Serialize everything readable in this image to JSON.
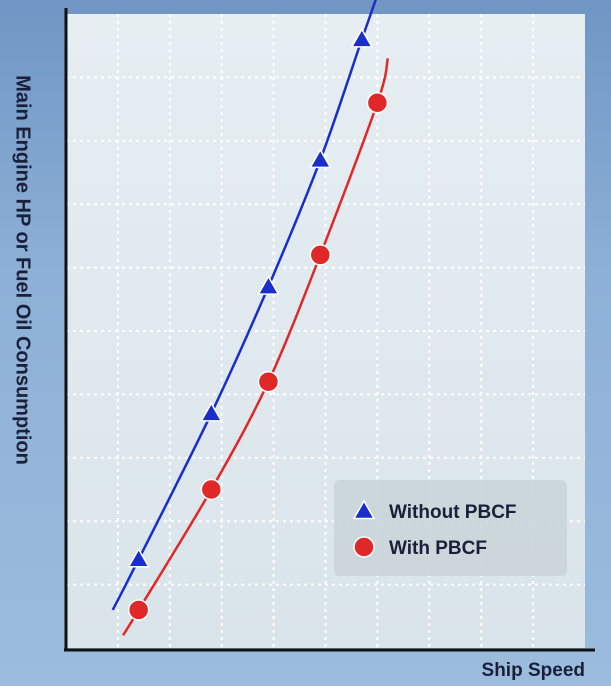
{
  "chart_data": {
    "type": "line",
    "title": "",
    "xlabel": "Ship Speed",
    "ylabel": "Main Engine HP or Fuel Oil Consumption",
    "grid": true,
    "legend": "bottom-right",
    "xlim": [
      0,
      10
    ],
    "ylim": [
      0,
      10
    ],
    "series": [
      {
        "name": "Without PBCF",
        "marker": "triangle",
        "color": "#1a2ecc",
        "x": [
          1.4,
          2.8,
          3.9,
          4.9,
          5.7
        ],
        "y": [
          1.4,
          3.7,
          5.7,
          7.7,
          9.6
        ],
        "curve_x": [
          0.9,
          1.4,
          2.8,
          3.9,
          4.9,
          5.7,
          6.0
        ],
        "curve_y": [
          0.6,
          1.4,
          3.7,
          5.7,
          7.7,
          9.6,
          10.3
        ]
      },
      {
        "name": "With PBCF",
        "marker": "circle",
        "color": "#e02828",
        "x": [
          1.4,
          2.8,
          3.9,
          4.9,
          6.0
        ],
        "y": [
          0.6,
          2.5,
          4.2,
          6.2,
          8.6
        ],
        "curve_x": [
          1.1,
          1.4,
          2.8,
          3.9,
          4.9,
          6.0,
          6.2
        ],
        "curve_y": [
          0.2,
          0.6,
          2.5,
          4.2,
          6.2,
          8.6,
          9.3
        ]
      }
    ]
  }
}
